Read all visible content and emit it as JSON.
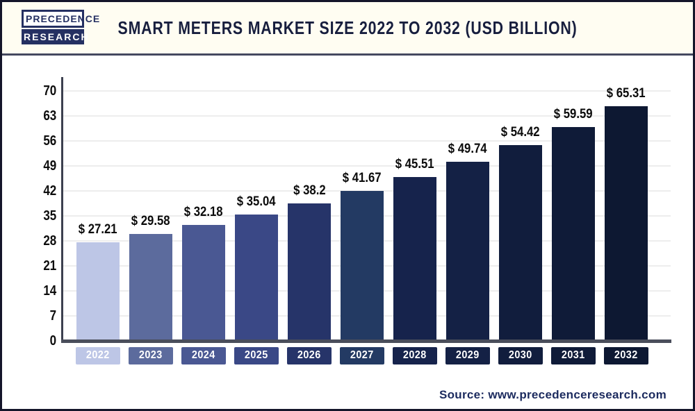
{
  "header": {
    "logo_line1": "PRECEDENCE",
    "logo_line2": "RESEARCH",
    "title": "SMART METERS MARKET SIZE 2022 TO 2032 (USD BILLION)"
  },
  "source_text": "Source: www.precedenceresearch.com",
  "colors": {
    "border": "#14152a",
    "header_background": "#fffdf2",
    "divider": "#45485f",
    "axis_line": "#4a4e5b",
    "gridline": "#ededed",
    "title_navy": "#171e3e",
    "source_navy": "#1b2a5e",
    "logo_navy": "#253062"
  },
  "chart_data": {
    "type": "bar",
    "title": "Smart Meters Market Size 2022 to 2032 (USD Billion)",
    "categories": [
      "2022",
      "2023",
      "2024",
      "2025",
      "2026",
      "2027",
      "2028",
      "2029",
      "2030",
      "2031",
      "2032"
    ],
    "values": [
      27.21,
      29.58,
      32.18,
      35.04,
      38.2,
      41.67,
      45.51,
      49.74,
      54.42,
      59.59,
      65.31
    ],
    "value_labels": [
      "$ 27.21",
      "$ 29.58",
      "$ 32.18",
      "$ 35.04",
      "$ 38.2",
      "$ 41.67",
      "$ 45.51",
      "$ 49.74",
      "$ 54.42",
      "$ 59.59",
      "$ 65.31"
    ],
    "bar_colors": [
      "#bdc6e6",
      "#5c6b9d",
      "#4a5893",
      "#3a4886",
      "#263469",
      "#233a63",
      "#16234c",
      "#142145",
      "#111d3d",
      "#0f1b38",
      "#0d1832"
    ],
    "xlabel": "",
    "ylabel": "",
    "ylim": [
      0,
      70
    ],
    "y_ticks": [
      0,
      7,
      14,
      21,
      28,
      35,
      42,
      49,
      56,
      63,
      70
    ],
    "grid": "horizontal",
    "legend": "none"
  }
}
